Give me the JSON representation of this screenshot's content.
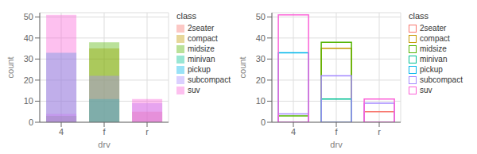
{
  "chart_data": [
    {
      "type": "bar",
      "x_label": "drv",
      "y_label": "count",
      "legend_title": "class",
      "legend": "upper right",
      "grid": true,
      "categories": [
        "4",
        "f",
        "r"
      ],
      "ylim": [
        0,
        52
      ],
      "yticks": [
        0,
        10,
        20,
        30,
        40,
        50
      ],
      "series": [
        {
          "name": "2seater",
          "color": "#F8766D",
          "values": [
            0,
            0,
            5
          ]
        },
        {
          "name": "compact",
          "color": "#C49A00",
          "values": [
            0,
            35,
            0
          ]
        },
        {
          "name": "midsize",
          "color": "#53B400",
          "values": [
            3,
            38,
            0
          ]
        },
        {
          "name": "minivan",
          "color": "#00C094",
          "values": [
            0,
            11,
            0
          ]
        },
        {
          "name": "pickup",
          "color": "#00B6EB",
          "values": [
            33,
            0,
            0
          ]
        },
        {
          "name": "subcompact",
          "color": "#A58AFF",
          "values": [
            4,
            22,
            9
          ]
        },
        {
          "name": "suv",
          "color": "#FB61D7",
          "values": [
            51,
            0,
            11
          ]
        }
      ]
    },
    {
      "type": "bar",
      "x_label": "drv",
      "y_label": "count",
      "legend_title": "class",
      "legend": "upper right",
      "grid": true,
      "categories": [
        "4",
        "f",
        "r"
      ],
      "ylim": [
        0,
        52
      ],
      "yticks": [
        0,
        10,
        20,
        30,
        40,
        50
      ],
      "series": [
        {
          "name": "2seater",
          "color": "#F8766D",
          "values": [
            0,
            0,
            5
          ]
        },
        {
          "name": "compact",
          "color": "#C49A00",
          "values": [
            0,
            35,
            0
          ]
        },
        {
          "name": "midsize",
          "color": "#53B400",
          "values": [
            3,
            38,
            0
          ]
        },
        {
          "name": "minivan",
          "color": "#00C094",
          "values": [
            0,
            11,
            0
          ]
        },
        {
          "name": "pickup",
          "color": "#00B6EB",
          "values": [
            33,
            0,
            0
          ]
        },
        {
          "name": "subcompact",
          "color": "#A58AFF",
          "values": [
            4,
            22,
            9
          ]
        },
        {
          "name": "suv",
          "color": "#FB61D7",
          "values": [
            51,
            0,
            11
          ]
        }
      ]
    }
  ]
}
